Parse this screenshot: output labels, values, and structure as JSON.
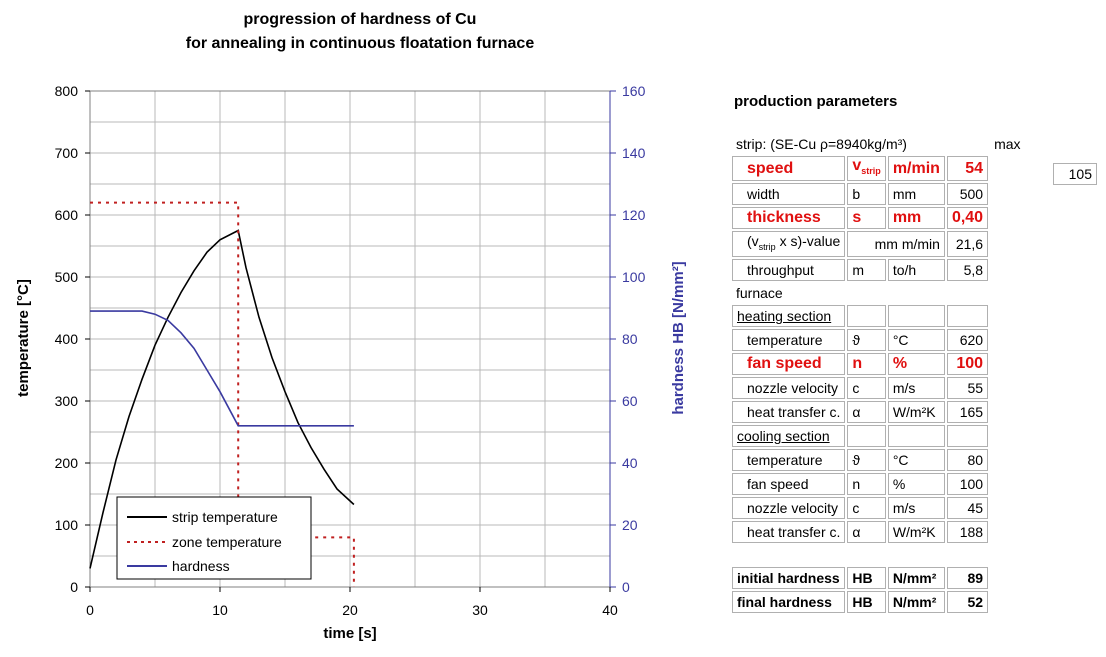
{
  "chart_data": {
    "type": "line",
    "title": [
      "progression of hardness of Cu",
      "for annealing in continuous floatation furnace"
    ],
    "xlabel": "time [s]",
    "ylabel": "temperature [°C]",
    "y2label": "hardness HB [N/mm²]",
    "xlim": [
      0,
      40
    ],
    "ylim": [
      0,
      800
    ],
    "y2lim": [
      0,
      160
    ],
    "xticks": [
      0,
      10,
      20,
      30,
      40
    ],
    "yticks": [
      0,
      100,
      200,
      300,
      400,
      500,
      600,
      700,
      800
    ],
    "y2ticks": [
      0,
      20,
      40,
      60,
      80,
      100,
      120,
      140,
      160
    ],
    "grid": true,
    "legend_position": "bottom-left",
    "series": [
      {
        "name": "strip temperature",
        "axis": "left",
        "color": "#000000",
        "style": "solid",
        "x": [
          0,
          1,
          2,
          3,
          4,
          5,
          6,
          7,
          8,
          9,
          10,
          11.4,
          12,
          13,
          14,
          15,
          16,
          17,
          18,
          19,
          20.3
        ],
        "y": [
          30,
          120,
          205,
          275,
          335,
          390,
          435,
          475,
          510,
          540,
          560,
          575,
          515,
          435,
          370,
          315,
          265,
          225,
          190,
          158,
          133
        ]
      },
      {
        "name": "zone temperature",
        "axis": "left",
        "color": "#c02020",
        "style": "dotted",
        "x": [
          0,
          11.4,
          11.4,
          20.3,
          20.3
        ],
        "y": [
          620,
          620,
          80,
          80,
          0
        ]
      },
      {
        "name": "hardness",
        "axis": "right",
        "color": "#3a3aa0",
        "style": "solid",
        "x": [
          0,
          4,
          5,
          6,
          7,
          8,
          9,
          10,
          11.4,
          20.3
        ],
        "y": [
          89,
          89,
          88,
          86,
          82,
          77,
          70,
          63,
          52,
          52
        ]
      }
    ]
  },
  "params": {
    "title": "production parameters",
    "strip_label": "strip: (SE-Cu ρ=8940kg/m³)",
    "max_label": "max",
    "max_value": "105",
    "strip_rows": [
      {
        "name": "speed",
        "sym": "v",
        "sub": "strip",
        "unit": "m/min",
        "value": "54",
        "hl": true
      },
      {
        "name": "width",
        "sym": "b",
        "sub": "",
        "unit": "mm",
        "value": "500",
        "hl": false
      },
      {
        "name": "thickness",
        "sym": "s",
        "sub": "",
        "unit": "mm",
        "value": "0,40",
        "hl": true
      }
    ],
    "vs_row": {
      "name_prefix": "(v",
      "name_sub": "strip",
      "name_suffix": " x s)-value",
      "unit": "mm m/min",
      "value": "21,6"
    },
    "throughput": {
      "name": "throughput",
      "sym": "m",
      "unit": "to/h",
      "value": "5,8"
    },
    "furnace_label": "furnace",
    "heating_label": "heating section",
    "heating_rows": [
      {
        "name": "temperature",
        "sym": "ϑ",
        "unit": "°C",
        "value": "620",
        "hl": false
      },
      {
        "name": "fan speed",
        "sym": "n",
        "unit": "%",
        "value": "100",
        "hl": true
      },
      {
        "name": "nozzle velocity",
        "sym": "c",
        "unit": "m/s",
        "value": "55",
        "hl": false
      },
      {
        "name": "heat transfer c.",
        "sym": "α",
        "unit": "W/m²K",
        "value": "165",
        "hl": false
      }
    ],
    "cooling_label": "cooling section",
    "cooling_rows": [
      {
        "name": "temperature",
        "sym": "ϑ",
        "unit": "°C",
        "value": "80",
        "hl": false
      },
      {
        "name": "fan speed",
        "sym": "n",
        "unit": "%",
        "value": "100",
        "hl": false
      },
      {
        "name": "nozzle velocity",
        "sym": "c",
        "unit": "m/s",
        "value": "45",
        "hl": false
      },
      {
        "name": "heat transfer c.",
        "sym": "α",
        "unit": "W/m²K",
        "value": "188",
        "hl": false
      }
    ],
    "hardness_rows": [
      {
        "name": "initial hardness",
        "sym": "HB",
        "unit": "N/mm²",
        "value": "89"
      },
      {
        "name": "final hardness",
        "sym": "HB",
        "unit": "N/mm²",
        "value": "52"
      }
    ]
  }
}
